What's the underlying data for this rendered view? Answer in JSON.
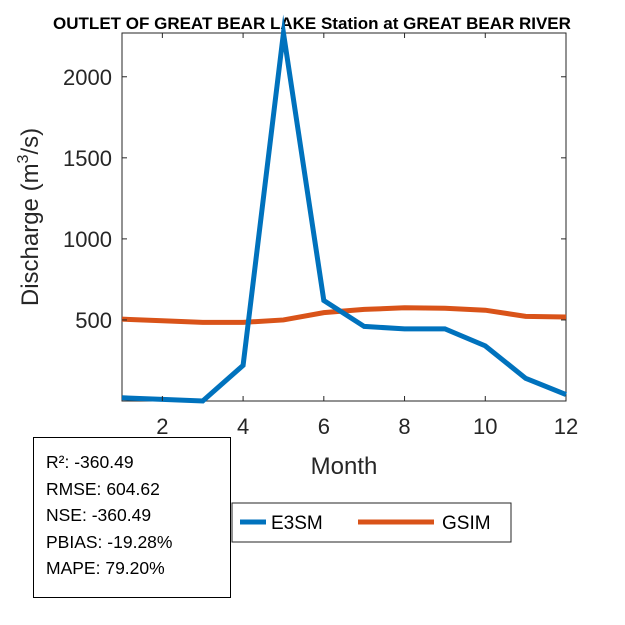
{
  "chart_data": {
    "type": "line",
    "title": "OUTLET OF GREAT BEAR LAKE  Station at  GREAT BEAR RIVER",
    "xlabel": "Month",
    "ylabel": "Discharge (m",
    "ylabel_superscript": "3",
    "ylabel_suffix": "/s)",
    "xlim": [
      1,
      12
    ],
    "ylim": [
      0,
      2270
    ],
    "xticks": [
      2,
      4,
      6,
      8,
      10,
      12
    ],
    "yticks": [
      500,
      1000,
      1500,
      2000
    ],
    "x": [
      1,
      2,
      3,
      4,
      5,
      6,
      7,
      8,
      9,
      10,
      11,
      12
    ],
    "series": [
      {
        "name": "E3SM",
        "color": "#0072BD",
        "values": [
          20,
          10,
          0,
          220,
          2270,
          620,
          460,
          445,
          445,
          340,
          140,
          40
        ]
      },
      {
        "name": "GSIM",
        "color": "#D95319",
        "values": [
          505,
          495,
          485,
          485,
          500,
          545,
          565,
          575,
          572,
          560,
          522,
          518
        ]
      }
    ],
    "legend_position": "bottom-center"
  },
  "stats": [
    {
      "label": "R²:",
      "value": "-360.49"
    },
    {
      "label": "RMSE:",
      "value": "604.62"
    },
    {
      "label": "NSE:",
      "value": "-360.49"
    },
    {
      "label": "PBIAS:",
      "value": "-19.28%"
    },
    {
      "label": "MAPE:",
      "value": "79.20%"
    }
  ]
}
